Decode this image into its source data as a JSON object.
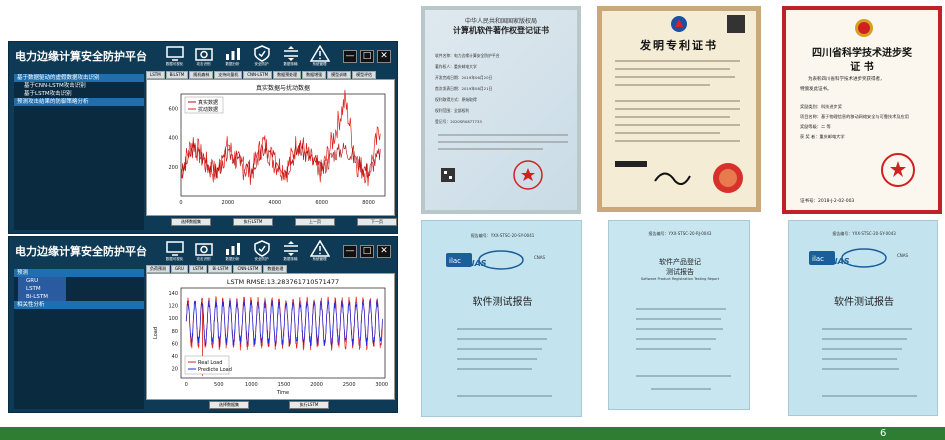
{
  "app1": {
    "title": "电力边缘计算安全防护平台",
    "toolbar": [
      "数据可视化",
      "攻击识别",
      "数据分析",
      "安全防护",
      "数据传输",
      "系统管理"
    ],
    "sidebar": {
      "section1": "基于数据驱动的虚假数据攻击识别",
      "sub1": "基于CNN-LSTM攻击识别",
      "sub2": "基于LSTM攻击识别",
      "section2": "预测攻击结果的防御策略分析"
    },
    "tabs": [
      "LSTM",
      "BiLSTM",
      "随机森林",
      "支持向量机",
      "CNN-LSTM",
      "数据预处理",
      "数据增强",
      "模型训练",
      "模型评估"
    ],
    "chart_title": "真实数据与扰动数据",
    "legend": [
      "真实数据",
      "扰动数据"
    ],
    "buttons": [
      "选择数据集",
      "执行LSTM",
      "上一页",
      "下一页"
    ]
  },
  "app2": {
    "title": "电力边缘计算安全防护平台",
    "toolbar": [
      "数据可视化",
      "攻击识别",
      "数据分析",
      "安全防护",
      "数据传输",
      "系统管理"
    ],
    "sidebar": {
      "section1": "预测",
      "sub1": "GRU",
      "sub2": "LSTM",
      "sub3": "Bi-LSTM",
      "section2": "相关性分析"
    },
    "tabs": [
      "负荷预测",
      "GRU",
      "LSTM",
      "Bi-LSTM",
      "CNN-LSTM",
      "数据处理"
    ],
    "chart_title": "LSTM  RMSE:13.283761710571477",
    "xlabel": "Time",
    "ylabel": "Load",
    "legend": [
      "Real Load",
      "Predicte Load"
    ],
    "buttons": [
      "选择数据集",
      "执行LSTM"
    ]
  },
  "chart_data": [
    {
      "type": "line",
      "title": "真实数据与扰动数据",
      "x": [
        0,
        500,
        1000,
        1500,
        2000,
        2500,
        3000,
        3500,
        4000,
        4500,
        5000,
        5500,
        6000,
        6500,
        7000,
        7500,
        8000,
        8500
      ],
      "series": [
        {
          "name": "真实数据",
          "values": [
            150,
            320,
            260,
            160,
            300,
            240,
            170,
            320,
            250,
            180,
            330,
            260,
            170,
            290,
            330,
            240,
            170,
            300
          ]
        },
        {
          "name": "扰动数据",
          "values": [
            160,
            380,
            230,
            150,
            340,
            210,
            160,
            370,
            230,
            170,
            390,
            250,
            160,
            400,
            660,
            220,
            150,
            480
          ]
        }
      ],
      "xticks": [
        0,
        2000,
        4000,
        6000,
        8000
      ],
      "yticks": [
        200,
        400,
        600
      ],
      "xlim": [
        0,
        8700
      ],
      "ylim": [
        0,
        700
      ],
      "legend_position": "top-left"
    },
    {
      "type": "line",
      "title": "LSTM  RMSE:13.283761710571477",
      "xlabel": "Time",
      "ylabel": "Load",
      "xticks": [
        0,
        500,
        1000,
        1500,
        2000,
        2500,
        3000
      ],
      "yticks": [
        20,
        40,
        60,
        80,
        100,
        120,
        140
      ],
      "xlim": [
        -80,
        3050
      ],
      "ylim": [
        5,
        148
      ],
      "series": [
        {
          "name": "Real Load",
          "cycle_peak": [
            125,
            135
          ],
          "cycle_trough": [
            48,
            62
          ],
          "periods": 28,
          "outliers": [
            {
              "x": 250,
              "y": 8
            }
          ]
        },
        {
          "name": "Predicte Load",
          "cycle_peak": [
            118,
            130
          ],
          "cycle_trough": [
            55,
            70
          ],
          "periods": 28
        }
      ],
      "legend_position": "lower-left"
    }
  ],
  "certs": {
    "copyright": {
      "header": "中华人民共和国国家版权局",
      "title": "计算机软件著作权登记证书",
      "fields": [
        "软件名称：",
        "著作权人：",
        "开发完成日期：",
        "首次发表日期：",
        "权利取得方式：",
        "权利范围：",
        "登记号："
      ],
      "values": [
        "电力边缘计算安全防护平台",
        "重庆邮电大学",
        "2019年06月20日",
        "2019年08月21日",
        "原始取得",
        "全部权利",
        "2020SR0877733"
      ]
    },
    "patent": {
      "title": "发明专利证书"
    },
    "award": {
      "province": "四川省科学技术进步奖",
      "cert": "证  书",
      "line1": "为表彰四川省科学技术进步奖获得者，",
      "line2": "特颁发此证书。",
      "items": [
        "奖励类别：科技进步奖",
        "项目名称：基于物理信息的移动网络安全与可靠技术及应用",
        "奖励等级：二  等",
        "获 奖 者：重庆邮电大学"
      ],
      "number": "证书号：2018-J-2-02-003"
    },
    "reports": [
      {
        "number": "报告编号：YXX-STSC-20-SY-0041",
        "title": "软件测试报告",
        "badge": "CNAS"
      },
      {
        "number": "报告编号：YXX-STSC-20-RJ-0043",
        "title": "软件产品登记",
        "subtitle": "测试报告",
        "subtitle_en": "Software Product Registration Testing Report"
      },
      {
        "number": "报告编号：YXX-STSC-20-SY-0043",
        "title": "软件测试报告",
        "badge": "CNAS"
      }
    ]
  },
  "page_number": "6",
  "colors": {
    "app_bg": "#0e3a56",
    "footer": "#2e7d32",
    "red": "#e0201c",
    "blue": "#1a2ae8"
  }
}
